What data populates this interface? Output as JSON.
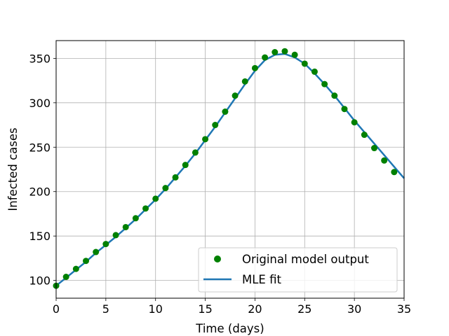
{
  "chart_data": {
    "type": "line",
    "xlabel": "Time (days)",
    "ylabel": "Infected cases",
    "xlim": [
      0,
      35
    ],
    "ylim": [
      80,
      370
    ],
    "xticks": [
      0,
      5,
      10,
      15,
      20,
      25,
      30,
      35
    ],
    "yticks": [
      100,
      150,
      200,
      250,
      300,
      350
    ],
    "grid": true,
    "legend_position": "lower-right",
    "colors": {
      "points": "#008000",
      "fit": "#1f77b4"
    },
    "series": [
      {
        "name": "Original model output",
        "kind": "scatter",
        "x": [
          0,
          1,
          2,
          3,
          4,
          5,
          6,
          7,
          8,
          9,
          10,
          11,
          12,
          13,
          14,
          15,
          16,
          17,
          18,
          19,
          20,
          21,
          22,
          23,
          24,
          25,
          26,
          27,
          28,
          29,
          30,
          31,
          32,
          33,
          34
        ],
        "y": [
          94,
          104,
          113,
          122,
          132,
          141,
          151,
          160,
          170,
          181,
          192,
          204,
          216,
          230,
          244,
          259,
          275,
          290,
          308,
          324,
          339,
          351,
          357,
          358,
          354,
          344,
          335,
          321,
          308,
          293,
          278,
          264,
          249,
          235,
          222
        ]
      },
      {
        "name": "MLE fit",
        "kind": "line",
        "x": [
          0,
          1,
          2,
          3,
          4,
          5,
          6,
          7,
          8,
          9,
          10,
          11,
          12,
          13,
          14,
          15,
          16,
          17,
          18,
          19,
          20,
          21,
          22,
          23,
          24,
          25,
          26,
          27,
          28,
          29,
          30,
          31,
          32,
          33,
          34,
          35
        ],
        "y": [
          94,
          103,
          112,
          121,
          131,
          140,
          149,
          159,
          169,
          180,
          191,
          203,
          216,
          229,
          243,
          258,
          273,
          289,
          305,
          321,
          336,
          348,
          354,
          355,
          351,
          344,
          333,
          321,
          308,
          294,
          280,
          267,
          254,
          241,
          228,
          215
        ]
      }
    ]
  }
}
